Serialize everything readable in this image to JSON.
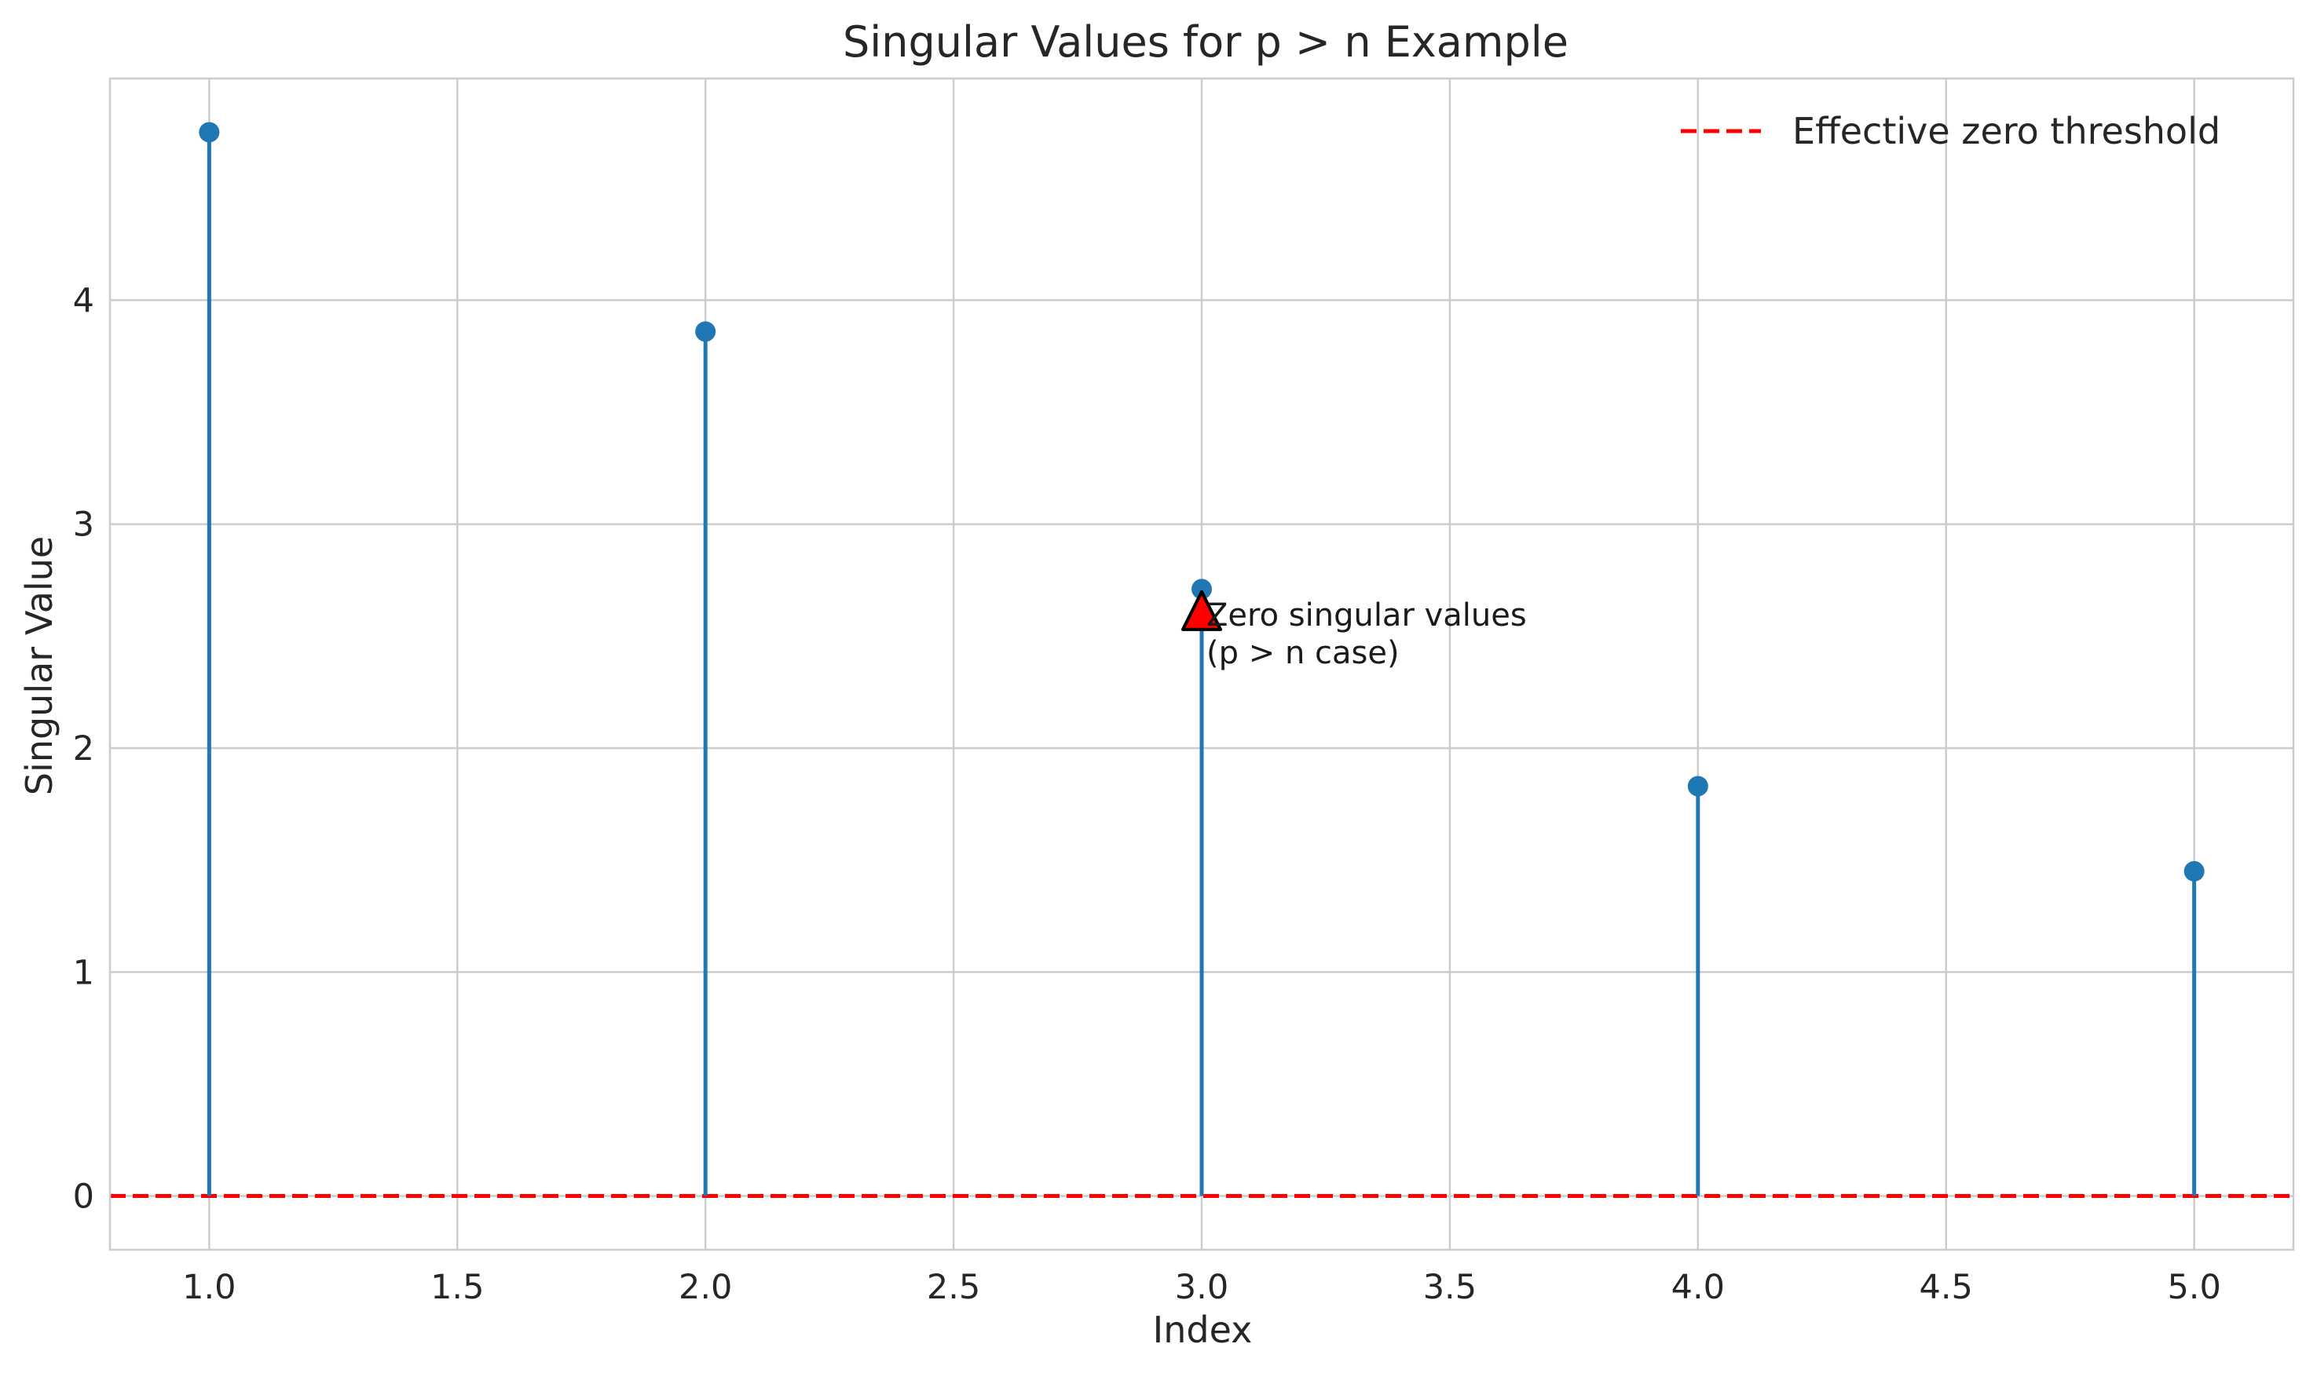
{
  "chart_data": {
    "type": "stem",
    "title": "Singular Values for p > n Example",
    "xlabel": "Index",
    "ylabel": "Singular Value",
    "x": [
      1.0,
      2.0,
      3.0,
      4.0,
      5.0
    ],
    "values": [
      4.75,
      3.86,
      2.71,
      1.83,
      1.45
    ],
    "xlim": [
      0.8,
      5.2
    ],
    "ylim": [
      -0.24,
      4.99
    ],
    "xticks": [
      1.0,
      1.5,
      2.0,
      2.5,
      3.0,
      3.5,
      4.0,
      4.5,
      5.0
    ],
    "xtick_labels": [
      "1.0",
      "1.5",
      "2.0",
      "2.5",
      "3.0",
      "3.5",
      "4.0",
      "4.5",
      "5.0"
    ],
    "yticks": [
      0,
      1,
      2,
      3,
      4
    ],
    "ytick_labels": [
      "0",
      "1",
      "2",
      "3",
      "4"
    ],
    "grid": true,
    "series_color": "#1f77b4",
    "threshold": {
      "name": "Effective zero threshold",
      "value": 0.0,
      "color": "#ff0000",
      "style": "dashed"
    },
    "legend": {
      "placement": "top-right",
      "entries": [
        "Effective zero threshold"
      ]
    },
    "annotation": {
      "lines": [
        "Zero singular values",
        "(p > n case)"
      ],
      "arrow_point": {
        "x": 3.0,
        "y": 2.6
      },
      "arrow_color": "#ff0000"
    }
  }
}
